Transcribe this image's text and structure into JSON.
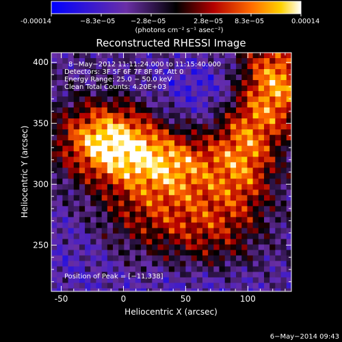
{
  "colorbar": {
    "tick_labels": [
      "-0.00014",
      "−8.3e−05",
      "−2.8e−05",
      "2.8e−05",
      "8.3e−05",
      "0.00014"
    ],
    "range": [
      -0.00014,
      0.00014
    ],
    "unit_label": "(photons cm⁻² s⁻¹ asec⁻²)",
    "colors": [
      "#0000ff",
      "#6a2fa6",
      "#000000",
      "#b40000",
      "#ff6a00",
      "#ffd200",
      "#ffffff"
    ]
  },
  "chart_data": {
    "type": "heatmap",
    "title": "Reconstructed RHESSI Image",
    "xlabel": "Heliocentric X (arcsec)",
    "ylabel": "Heliocentric Y (arcsec)",
    "xlim": [
      -58,
      135
    ],
    "ylim": [
      212,
      408
    ],
    "x_ticks": [
      -50,
      0,
      50,
      100
    ],
    "y_ticks": [
      250,
      300,
      350,
      400
    ],
    "annotations": [
      "8−May−2012 11:11:24.000 to 11:15:40.000",
      "Detectors: 3F 5F 6F 7F 8F 9F, Att 0",
      "Energy Range: 25.0 − 50.0 keV",
      "Clean    Total Counts: 4.20E+03"
    ],
    "peak_label": "Position of Peak = [−11,338]",
    "peak": [
      -11,
      338
    ]
  },
  "footer": {
    "date": "6−May−2014 09:43"
  }
}
